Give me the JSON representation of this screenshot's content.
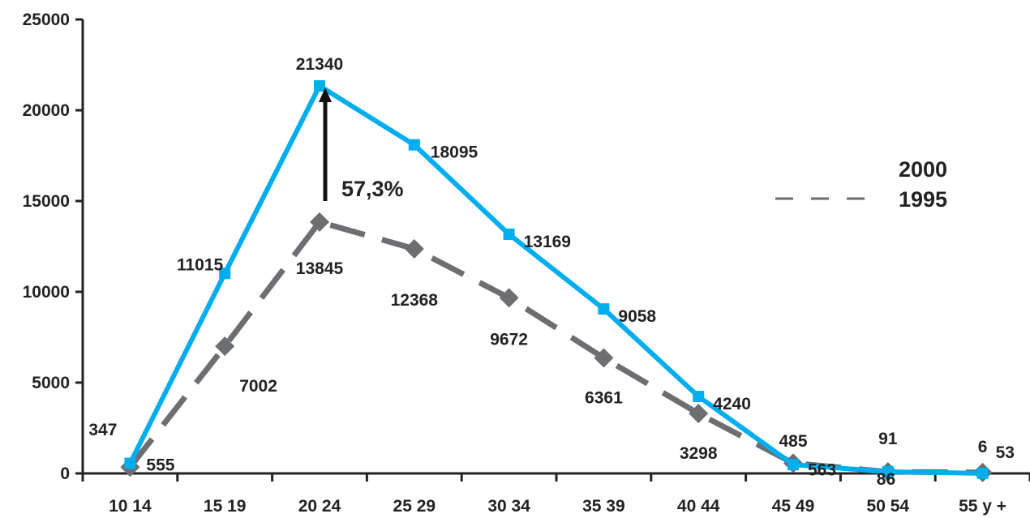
{
  "chart_data": {
    "type": "line",
    "categories": [
      "10 14",
      "15 19",
      "20 24",
      "25 29",
      "30 34",
      "35 39",
      "40 44",
      "45 49",
      "50 54",
      "55 y +"
    ],
    "ylim": [
      0,
      25000
    ],
    "yticks": [
      0,
      5000,
      10000,
      15000,
      20000,
      25000
    ],
    "grid": false,
    "legend_position": "right",
    "series": [
      {
        "name": "2000",
        "color": "#00aeef",
        "style": "solid",
        "marker": "square",
        "values": [
          555,
          11015,
          21340,
          18095,
          13169,
          9058,
          4240,
          485,
          91,
          6
        ],
        "labels": [
          "555",
          "11015",
          "21340",
          "18095",
          "13169",
          "9058",
          "4240",
          "485",
          "91",
          "6"
        ]
      },
      {
        "name": "1995",
        "color": "#6d6e71",
        "style": "dashed",
        "marker": "diamond",
        "values": [
          347,
          7002,
          13845,
          12368,
          9672,
          6361,
          3298,
          563,
          86,
          53
        ],
        "labels": [
          "347",
          "7002",
          "13845",
          "12368",
          "9672",
          "6361",
          "3298",
          "563",
          "86",
          "53"
        ]
      }
    ],
    "annotation": {
      "text": "57,3%",
      "category": "20 24",
      "from_value": 15000,
      "to_value": 21340
    }
  }
}
